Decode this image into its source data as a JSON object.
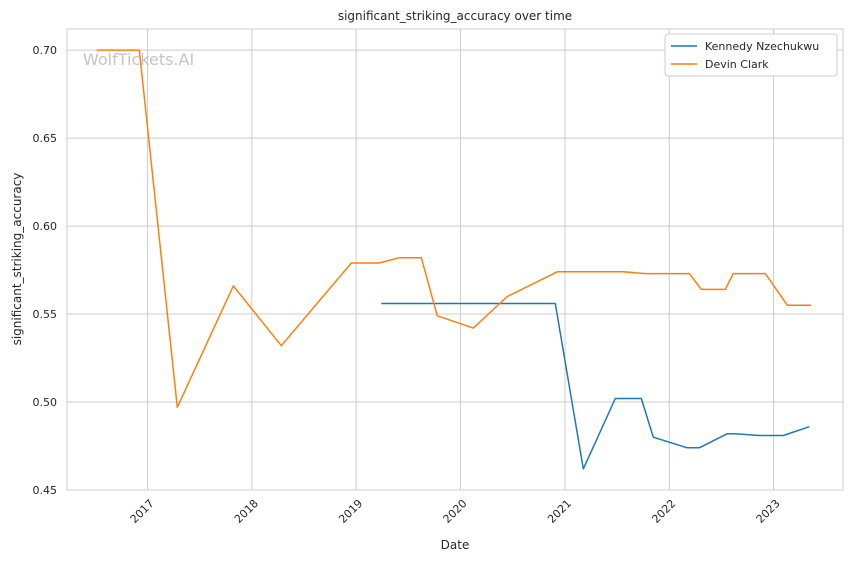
{
  "chart_data": {
    "type": "line",
    "title": "significant_striking_accuracy over time",
    "xlabel": "Date",
    "ylabel": "significant_striking_accuracy",
    "watermark": "WolfTickets.AI",
    "x_ticks": [
      "2017",
      "2018",
      "2019",
      "2020",
      "2021",
      "2022",
      "2023"
    ],
    "y_ticks": [
      "0.45",
      "0.50",
      "0.55",
      "0.60",
      "0.65",
      "0.70"
    ],
    "xlim": [
      "2016-03-25",
      "2023-09-01"
    ],
    "ylim": [
      0.45,
      0.712
    ],
    "grid": true,
    "legend_position": "top-right",
    "series": [
      {
        "name": "Kennedy Nzechukwu",
        "color": "#1f77b4",
        "points": [
          [
            "2019-03-30",
            0.556
          ],
          [
            "2020-11-28",
            0.556
          ],
          [
            "2021-03-06",
            0.462
          ],
          [
            "2021-06-26",
            0.502
          ],
          [
            "2021-09-25",
            0.502
          ],
          [
            "2021-11-06",
            0.48
          ],
          [
            "2022-03-05",
            0.474
          ],
          [
            "2022-04-16",
            0.474
          ],
          [
            "2022-07-23",
            0.482
          ],
          [
            "2022-08-20",
            0.482
          ],
          [
            "2022-11-12",
            0.481
          ],
          [
            "2023-02-04",
            0.481
          ],
          [
            "2023-05-06",
            0.486
          ]
        ]
      },
      {
        "name": "Devin Clark",
        "color": "#ff7f0e",
        "points": [
          [
            "2016-07-08",
            0.7
          ],
          [
            "2016-12-03",
            0.7
          ],
          [
            "2017-04-15",
            0.497
          ],
          [
            "2017-10-28",
            0.566
          ],
          [
            "2018-04-14",
            0.532
          ],
          [
            "2018-12-15",
            0.579
          ],
          [
            "2019-03-23",
            0.579
          ],
          [
            "2019-06-01",
            0.582
          ],
          [
            "2019-08-17",
            0.582
          ],
          [
            "2019-10-12",
            0.549
          ],
          [
            "2020-02-15",
            0.542
          ],
          [
            "2020-06-13",
            0.56
          ],
          [
            "2020-12-05",
            0.574
          ],
          [
            "2021-07-24",
            0.574
          ],
          [
            "2021-10-09",
            0.573
          ],
          [
            "2022-03-12",
            0.573
          ],
          [
            "2022-04-23",
            0.564
          ],
          [
            "2022-07-16",
            0.564
          ],
          [
            "2022-08-13",
            0.573
          ],
          [
            "2022-12-03",
            0.573
          ],
          [
            "2023-02-18",
            0.555
          ],
          [
            "2023-05-13",
            0.555
          ]
        ]
      }
    ]
  }
}
